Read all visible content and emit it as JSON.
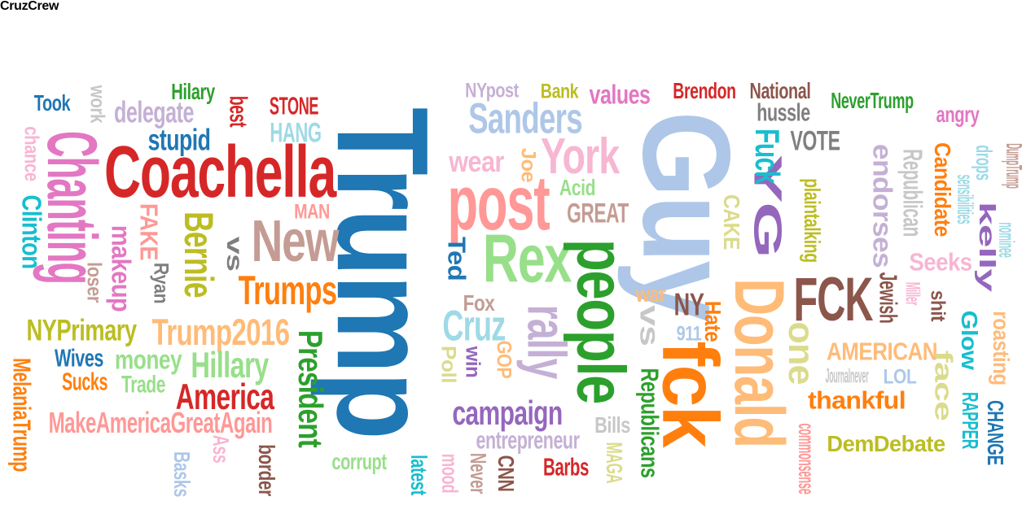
{
  "words": [
    {
      "text": "Trump",
      "color": "#1f77b4"
    },
    {
      "text": "Guy",
      "color": "#aec7e8"
    },
    {
      "text": "Coachella",
      "color": "#d62728"
    },
    {
      "text": "Chanting",
      "color": "#e377c2"
    },
    {
      "text": "post",
      "color": "#ff9896"
    },
    {
      "text": "Rex",
      "color": "#98df8a"
    },
    {
      "text": "people",
      "color": "#2ca02c"
    },
    {
      "text": "fck",
      "color": "#ff7f0e"
    },
    {
      "text": "Donald",
      "color": "#ffbb78"
    },
    {
      "text": "FCK",
      "color": "#8c564b"
    },
    {
      "text": "New",
      "color": "#c49c94"
    },
    {
      "text": "rally",
      "color": "#c5b0d5"
    },
    {
      "text": "York",
      "color": "#f7b6d2"
    },
    {
      "text": "Sanders",
      "color": "#aec7e8"
    },
    {
      "text": "YG",
      "color": "#9467bd"
    },
    {
      "text": "Fuck",
      "color": "#17becf"
    },
    {
      "text": "Bernie",
      "color": "#bcbd22"
    },
    {
      "text": "Cruz",
      "color": "#9edae5"
    },
    {
      "text": "one",
      "color": "#dbdb8d"
    },
    {
      "text": "Trumps",
      "color": "#ff7f0e"
    },
    {
      "text": "Trump2016",
      "color": "#ffbb78"
    },
    {
      "text": "Hillary",
      "color": "#98df8a"
    },
    {
      "text": "America",
      "color": "#d62728"
    },
    {
      "text": "President",
      "color": "#2ca02c"
    },
    {
      "text": "campaign",
      "color": "#9467bd"
    },
    {
      "text": "MakeAmericaGreatAgain",
      "color": "#ff9896"
    },
    {
      "text": "NYPrimary",
      "color": "#bcbd22"
    },
    {
      "text": "Clinton",
      "color": "#17becf"
    },
    {
      "text": "stupid",
      "color": "#1f77b4"
    },
    {
      "text": "delegate",
      "color": "#c5b0d5"
    },
    {
      "text": "HANG",
      "color": "#9edae5"
    },
    {
      "text": "STONE",
      "color": "#d62728"
    },
    {
      "text": "best",
      "color": "#d62728"
    },
    {
      "text": "Hilary",
      "color": "#2ca02c"
    },
    {
      "text": "Took",
      "color": "#1f77b4"
    },
    {
      "text": "work",
      "color": "#c7c7c7"
    },
    {
      "text": "chance",
      "color": "#f7b6d2"
    },
    {
      "text": "FAKE",
      "color": "#ff9896"
    },
    {
      "text": "makeup",
      "color": "#e377c2"
    },
    {
      "text": "loser",
      "color": "#c49c94"
    },
    {
      "text": "Ryan",
      "color": "#7f7f7f"
    },
    {
      "text": "vs",
      "color": "#7f7f7f"
    },
    {
      "text": "MAN",
      "color": "#ff9896"
    },
    {
      "text": "money",
      "color": "#98df8a"
    },
    {
      "text": "Wives",
      "color": "#1f77b4"
    },
    {
      "text": "Sucks",
      "color": "#ff7f0e"
    },
    {
      "text": "Trade",
      "color": "#98df8a"
    },
    {
      "text": "MelaniaTrump",
      "color": "#ff7f0e"
    },
    {
      "text": "Ass",
      "color": "#f7b6d2"
    },
    {
      "text": "Basks",
      "color": "#aec7e8"
    },
    {
      "text": "border",
      "color": "#8c564b"
    },
    {
      "text": "corrupt",
      "color": "#98df8a"
    },
    {
      "text": "latest",
      "color": "#17becf"
    },
    {
      "text": "mood",
      "color": "#f7b6d2"
    },
    {
      "text": "Never",
      "color": "#c49c94"
    },
    {
      "text": "CNN",
      "color": "#8c564b"
    },
    {
      "text": "Barbs",
      "color": "#d62728"
    },
    {
      "text": "entrepreneur",
      "color": "#c5b0d5"
    },
    {
      "text": "MAGA",
      "color": "#dbdb8d"
    },
    {
      "text": "Bills",
      "color": "#c7c7c7"
    },
    {
      "text": "Republicans",
      "color": "#2ca02c"
    },
    {
      "text": "vs",
      "color": "#c7c7c7"
    },
    {
      "text": "NY",
      "color": "#8c564b"
    },
    {
      "text": "911",
      "color": "#aec7e8"
    },
    {
      "text": "war",
      "color": "#ffbb78"
    },
    {
      "text": "Hate",
      "color": "#ff7f0e"
    },
    {
      "text": "Ted",
      "color": "#1f77b4"
    },
    {
      "text": "wear",
      "color": "#f7b6d2"
    },
    {
      "text": "Joe",
      "color": "#ffbb78"
    },
    {
      "text": "Acid",
      "color": "#98df8a"
    },
    {
      "text": "GREAT",
      "color": "#c49c94"
    },
    {
      "text": "Fox",
      "color": "#c49c94"
    },
    {
      "text": "Poll",
      "color": "#dbdb8d"
    },
    {
      "text": "win",
      "color": "#9467bd"
    },
    {
      "text": "GOP",
      "color": "#ffbb78"
    },
    {
      "text": "NYpost",
      "color": "#c5b0d5"
    },
    {
      "text": "Bank",
      "color": "#bcbd22"
    },
    {
      "text": "values",
      "color": "#e377c2"
    },
    {
      "text": "Brendon",
      "color": "#d62728"
    },
    {
      "text": "National",
      "color": "#8c564b"
    },
    {
      "text": "hussle",
      "color": "#7f7f7f"
    },
    {
      "text": "NeverTrump",
      "color": "#2ca02c"
    },
    {
      "text": "angry",
      "color": "#e377c2"
    },
    {
      "text": "VOTE",
      "color": "#7f7f7f"
    },
    {
      "text": "CAKE",
      "color": "#dbdb8d"
    },
    {
      "text": "plaintalking",
      "color": "#bcbd22"
    },
    {
      "text": "endorses",
      "color": "#c5b0d5"
    },
    {
      "text": "Republican",
      "color": "#c7c7c7"
    },
    {
      "text": "Candidate",
      "color": "#ff7f0e"
    },
    {
      "text": "sensibilities",
      "color": "#9edae5"
    },
    {
      "text": "drops",
      "color": "#9edae5"
    },
    {
      "text": "kelly",
      "color": "#9467bd"
    },
    {
      "text": "DumpTrump",
      "color": "#c49c94"
    },
    {
      "text": "nominee",
      "color": "#9edae5"
    },
    {
      "text": "Seeks",
      "color": "#f7b6d2"
    },
    {
      "text": "Jewish",
      "color": "#8c564b"
    },
    {
      "text": "Miller",
      "color": "#f7b6d2"
    },
    {
      "text": "shit",
      "color": "#8c564b"
    },
    {
      "text": "Glow",
      "color": "#17becf"
    },
    {
      "text": "roasting",
      "color": "#ffbb78"
    },
    {
      "text": "AMERICAN",
      "color": "#ffbb78"
    },
    {
      "text": "Journalnever",
      "color": "#c7c7c7"
    },
    {
      "text": "LOL",
      "color": "#aec7e8"
    },
    {
      "text": "face",
      "color": "#dbdb8d"
    },
    {
      "text": "RAPPER",
      "color": "#17becf"
    },
    {
      "text": "CHANGE",
      "color": "#1f77b4"
    },
    {
      "text": "thankful",
      "color": "#ff7f0e"
    },
    {
      "text": "DemDebate",
      "color": "#bcbd22"
    },
    {
      "text": "commonsense",
      "color": "#ff9896"
    },
    {
      "text": "CruzCrew",
      "color": "#9edae5"
    }
  ]
}
